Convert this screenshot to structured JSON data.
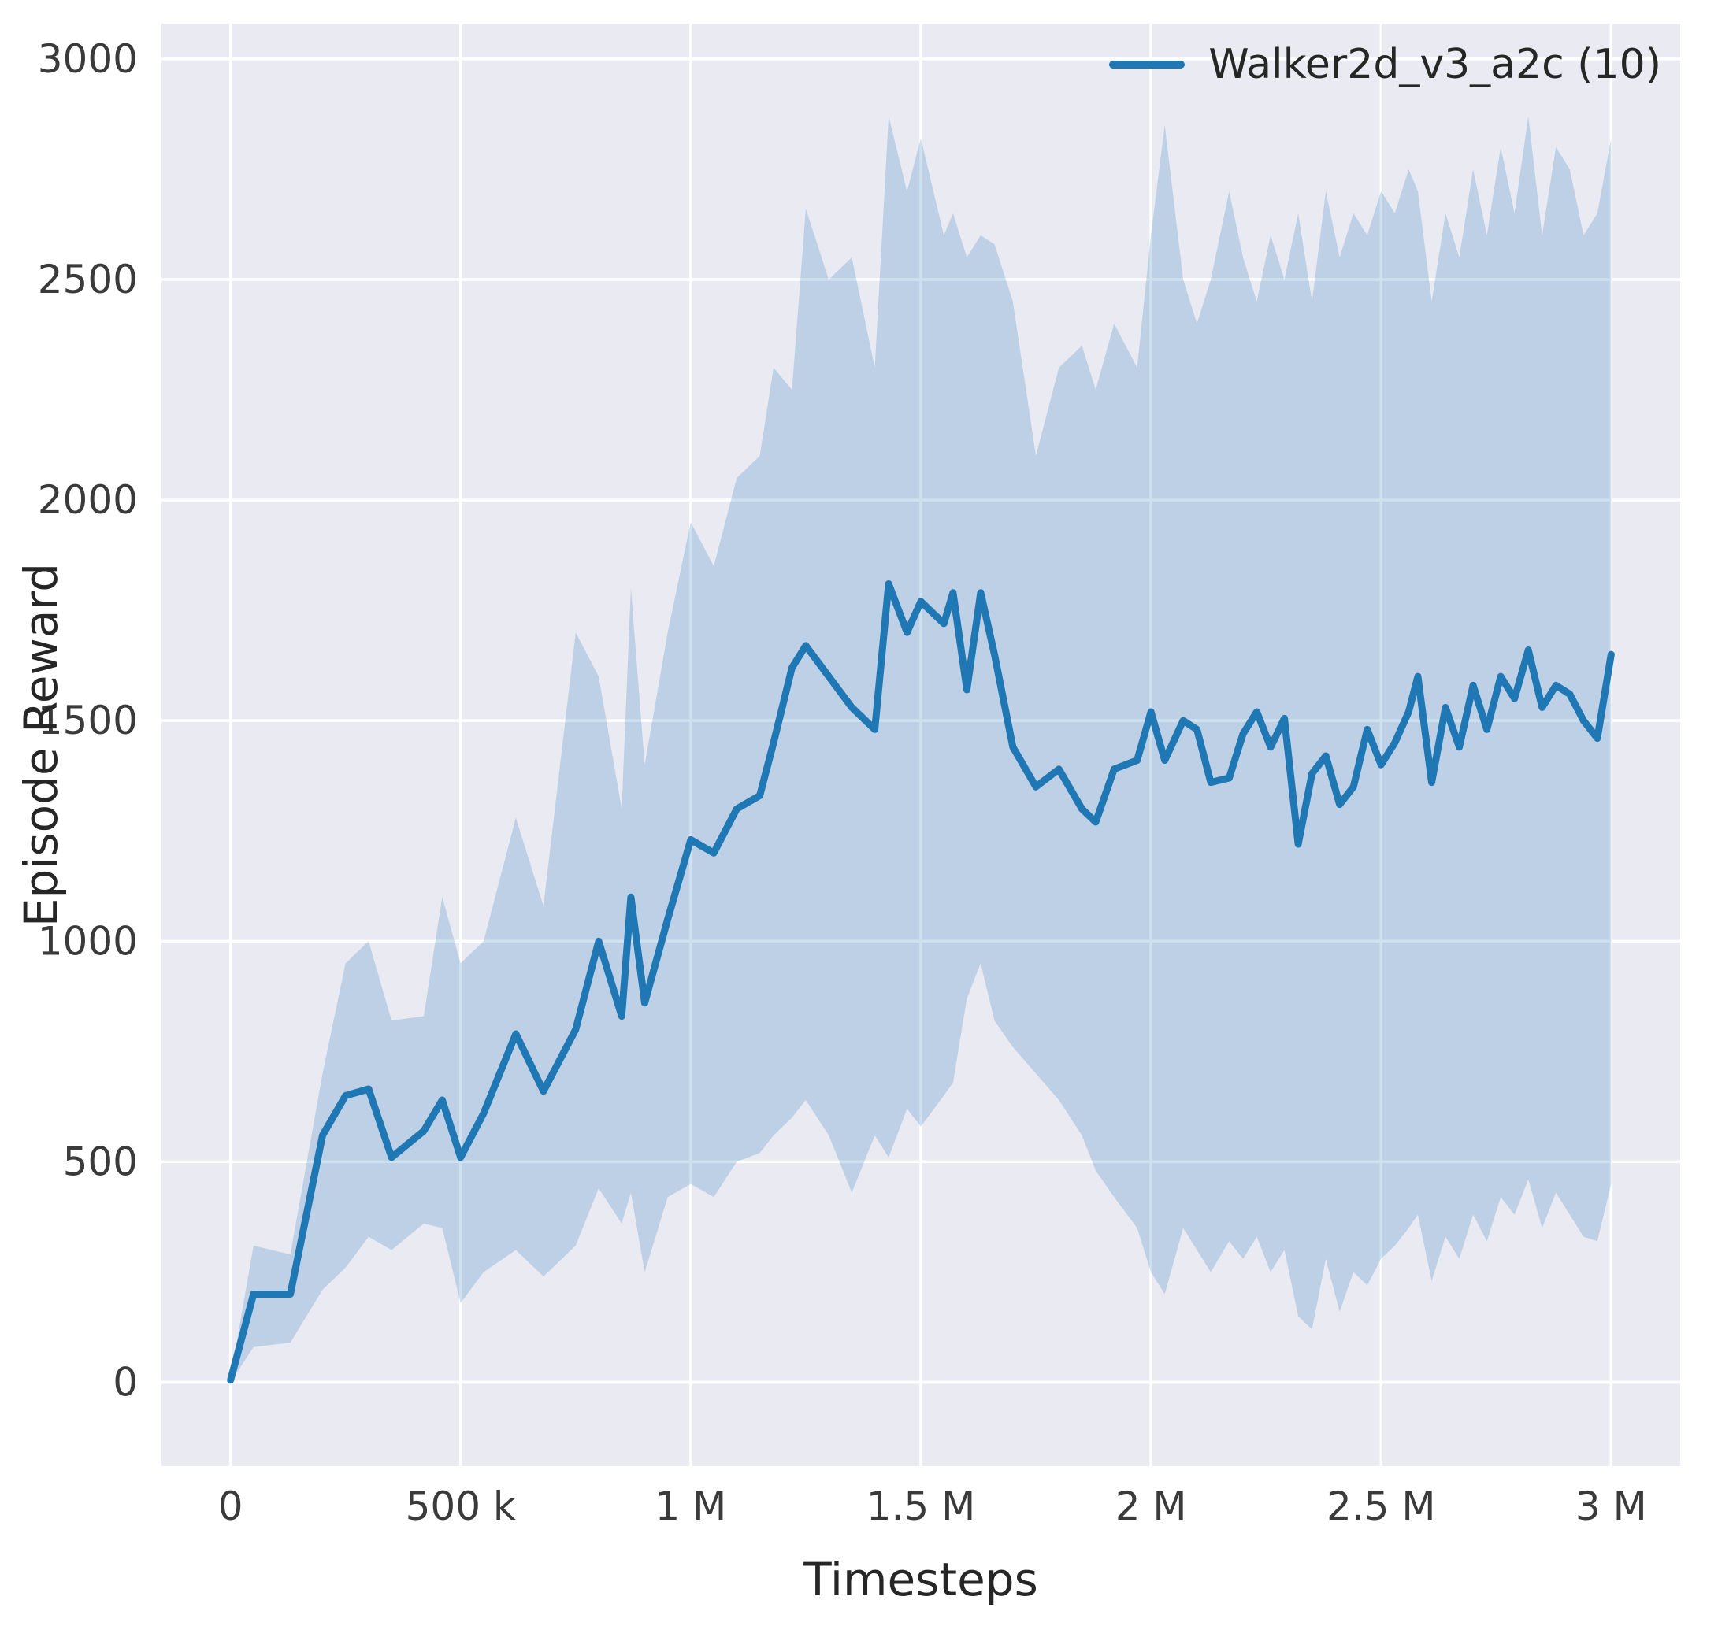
{
  "figure": {
    "background": "#ffffff",
    "axes_background": "#eaeaf2",
    "grid_color": "#ffffff",
    "tick_color": "#3a3a3a",
    "text_color": "#262626"
  },
  "chart_data": {
    "type": "line",
    "title": "",
    "xlabel": "Timesteps",
    "ylabel": "Episode Reward",
    "grid": true,
    "legend_position": "upper right",
    "legend": [
      {
        "label": "Walker2d_v3_a2c (10)",
        "color": "#1f77b4"
      }
    ],
    "xlim": [
      -150000,
      3150000
    ],
    "ylim": [
      -190,
      3080
    ],
    "xticks": {
      "values": [
        0,
        500000,
        1000000,
        1500000,
        2000000,
        2500000,
        3000000
      ],
      "labels": [
        "0",
        "500 k",
        "1 M",
        "1.5 M",
        "2 M",
        "2.5 M",
        "3 M"
      ]
    },
    "yticks": {
      "values": [
        0,
        500,
        1000,
        1500,
        2000,
        2500,
        3000
      ],
      "labels": [
        "0",
        "500",
        "1000",
        "1500",
        "2000",
        "2500",
        "3000"
      ]
    },
    "series": [
      {
        "name": "Walker2d_v3_a2c (10)",
        "color": "#1f77b4",
        "band_color": "#1f77b4",
        "band_opacity": 0.22,
        "line_width": 9,
        "x": [
          0,
          50000,
          130000,
          200000,
          250000,
          300000,
          350000,
          420000,
          460000,
          500000,
          550000,
          620000,
          680000,
          750000,
          800000,
          850000,
          870000,
          900000,
          950000,
          1000000,
          1050000,
          1100000,
          1150000,
          1180000,
          1220000,
          1250000,
          1300000,
          1350000,
          1400000,
          1430000,
          1470000,
          1500000,
          1550000,
          1570000,
          1600000,
          1630000,
          1660000,
          1700000,
          1750000,
          1800000,
          1850000,
          1880000,
          1920000,
          1970000,
          2000000,
          2030000,
          2070000,
          2100000,
          2130000,
          2170000,
          2200000,
          2230000,
          2260000,
          2290000,
          2320000,
          2350000,
          2380000,
          2410000,
          2440000,
          2470000,
          2500000,
          2530000,
          2560000,
          2580000,
          2610000,
          2640000,
          2670000,
          2700000,
          2730000,
          2760000,
          2790000,
          2820000,
          2850000,
          2880000,
          2910000,
          2940000,
          2970000,
          3000000
        ],
        "mean": [
          5,
          200,
          200,
          560,
          650,
          665,
          510,
          570,
          640,
          510,
          610,
          790,
          660,
          800,
          1000,
          830,
          1100,
          860,
          1050,
          1230,
          1200,
          1300,
          1330,
          1450,
          1620,
          1670,
          1600,
          1530,
          1480,
          1810,
          1700,
          1770,
          1720,
          1790,
          1570,
          1790,
          1650,
          1440,
          1350,
          1390,
          1300,
          1270,
          1390,
          1410,
          1520,
          1410,
          1500,
          1480,
          1360,
          1370,
          1470,
          1520,
          1440,
          1505,
          1220,
          1380,
          1420,
          1310,
          1350,
          1480,
          1400,
          1450,
          1520,
          1600,
          1360,
          1530,
          1440,
          1580,
          1480,
          1600,
          1550,
          1660,
          1530,
          1580,
          1560,
          1500,
          1460,
          1650
        ],
        "lower": [
          0,
          80,
          90,
          210,
          260,
          330,
          300,
          360,
          350,
          180,
          250,
          300,
          240,
          310,
          440,
          360,
          430,
          250,
          420,
          450,
          420,
          500,
          520,
          560,
          600,
          640,
          560,
          430,
          560,
          510,
          620,
          580,
          650,
          680,
          870,
          950,
          820,
          760,
          700,
          640,
          560,
          480,
          420,
          350,
          250,
          200,
          350,
          300,
          250,
          320,
          280,
          330,
          250,
          300,
          150,
          120,
          280,
          160,
          250,
          220,
          280,
          310,
          350,
          380,
          230,
          330,
          280,
          380,
          320,
          420,
          380,
          460,
          350,
          430,
          380,
          330,
          320,
          450
        ],
        "upper": [
          10,
          310,
          290,
          700,
          950,
          1000,
          820,
          830,
          1100,
          950,
          1000,
          1280,
          1080,
          1700,
          1600,
          1300,
          1800,
          1400,
          1700,
          1950,
          1850,
          2050,
          2100,
          2300,
          2250,
          2660,
          2500,
          2550,
          2300,
          2870,
          2700,
          2820,
          2600,
          2650,
          2550,
          2600,
          2580,
          2450,
          2100,
          2300,
          2350,
          2250,
          2400,
          2300,
          2600,
          2850,
          2500,
          2400,
          2500,
          2700,
          2550,
          2450,
          2600,
          2500,
          2650,
          2450,
          2700,
          2550,
          2650,
          2600,
          2700,
          2650,
          2750,
          2700,
          2450,
          2650,
          2550,
          2750,
          2600,
          2800,
          2650,
          2870,
          2600,
          2800,
          2750,
          2600,
          2650,
          2820
        ]
      }
    ]
  }
}
